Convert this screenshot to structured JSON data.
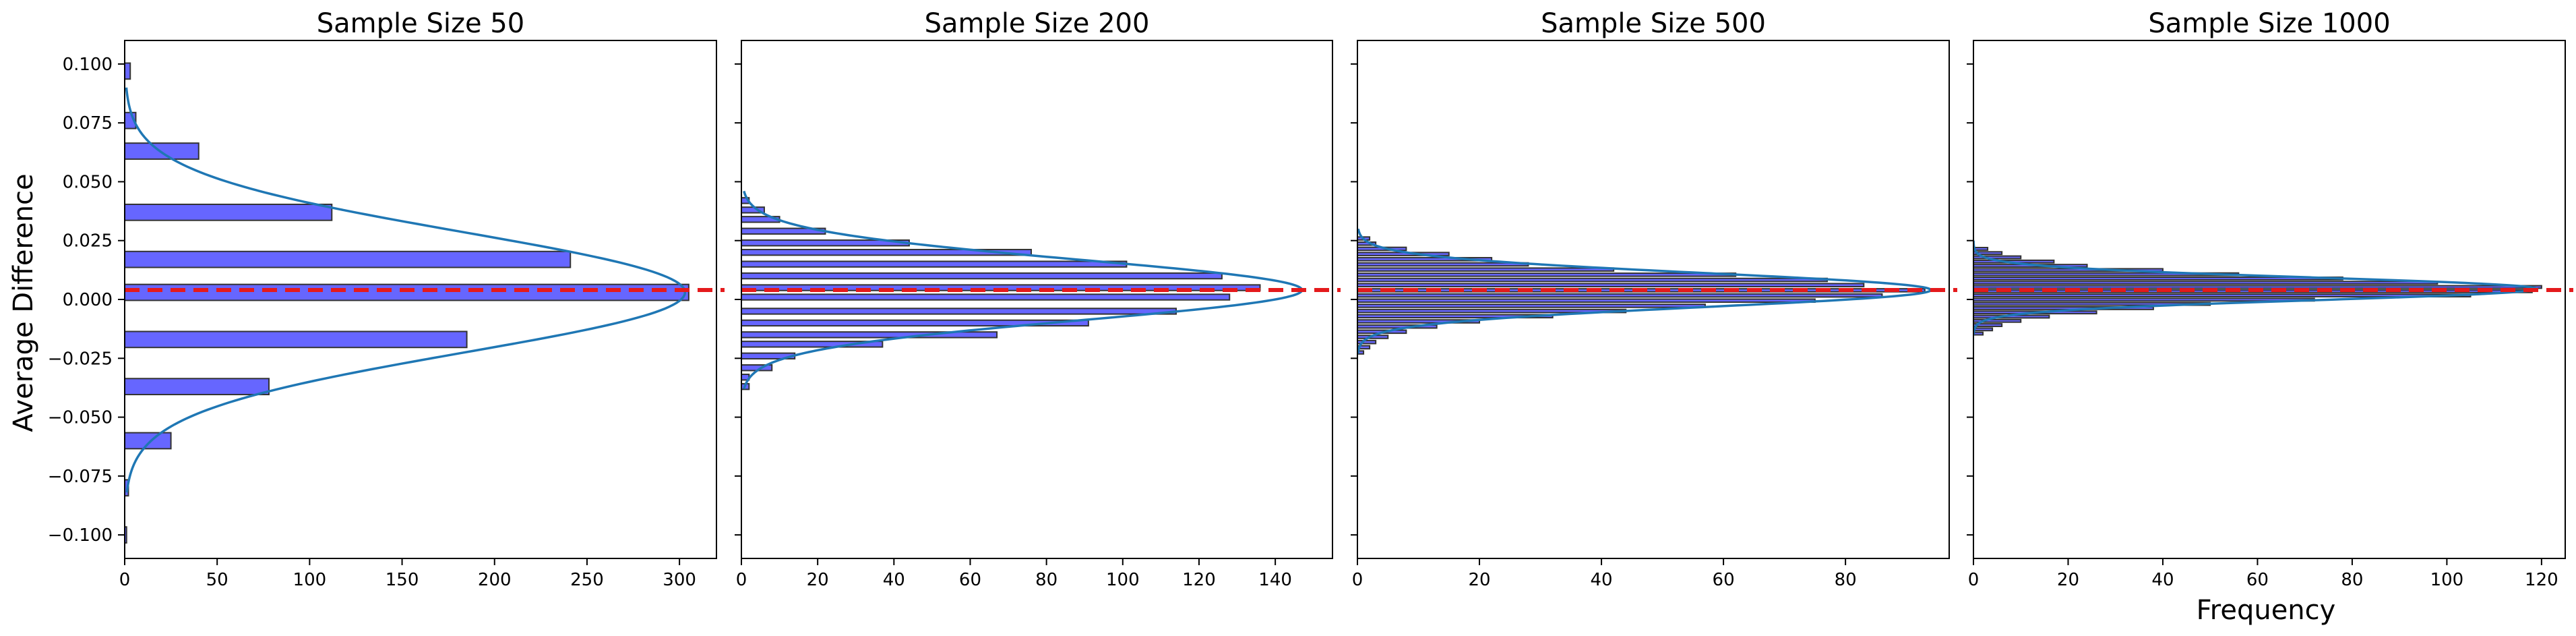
{
  "colors": {
    "bar_fill": "#6666ff",
    "bar_edge": "#333333",
    "kde": "#1f77b4",
    "reference_line": "#e41a1c"
  },
  "shared": {
    "ylabel": "Average Difference",
    "xlabel": "Frequency"
  },
  "chart_data": [
    {
      "type": "bar",
      "orientation": "horizontal",
      "title": "Sample Size 50",
      "ylabel": "Average Difference",
      "xlabel": "",
      "ylim": [
        -0.11,
        0.11
      ],
      "xlim": [
        0,
        320
      ],
      "xticks": [
        0,
        50,
        100,
        150,
        200,
        250,
        300
      ],
      "yticks": [
        -0.1,
        -0.075,
        -0.05,
        -0.025,
        0.0,
        0.025,
        0.05,
        0.075,
        0.1
      ],
      "ytick_labels": [
        "−0.100",
        "−0.075",
        "−0.050",
        "−0.025",
        "0.000",
        "0.025",
        "0.050",
        "0.075",
        "0.100"
      ],
      "bin_width": 0.0068,
      "bins": [
        {
          "y": -0.1,
          "count": 1
        },
        {
          "y": -0.08,
          "count": 2
        },
        {
          "y": -0.06,
          "count": 25
        },
        {
          "y": -0.037,
          "count": 78
        },
        {
          "y": -0.017,
          "count": 185
        },
        {
          "y": 0.003,
          "count": 305
        },
        {
          "y": 0.017,
          "count": 241
        },
        {
          "y": 0.037,
          "count": 112
        },
        {
          "y": 0.063,
          "count": 40
        },
        {
          "y": 0.076,
          "count": 6
        },
        {
          "y": 0.097,
          "count": 3
        }
      ],
      "kde": {
        "mean": 0.003,
        "sd": 0.0255,
        "peak": 303,
        "y_range": [
          -0.082,
          0.09
        ]
      },
      "reference_line": 0.004,
      "grid": false
    },
    {
      "type": "bar",
      "orientation": "horizontal",
      "title": "Sample Size 200",
      "xlabel": "",
      "ylim": [
        -0.11,
        0.11
      ],
      "xlim": [
        0,
        155
      ],
      "xticks": [
        0,
        20,
        40,
        60,
        80,
        100,
        120,
        140
      ],
      "bin_width": 0.0024,
      "bins": [
        {
          "y": -0.037,
          "count": 2
        },
        {
          "y": -0.033,
          "count": 2
        },
        {
          "y": -0.029,
          "count": 8
        },
        {
          "y": -0.024,
          "count": 14
        },
        {
          "y": -0.019,
          "count": 37
        },
        {
          "y": -0.015,
          "count": 67
        },
        {
          "y": -0.01,
          "count": 91
        },
        {
          "y": -0.005,
          "count": 114
        },
        {
          "y": 0.001,
          "count": 128
        },
        {
          "y": 0.005,
          "count": 136
        },
        {
          "y": 0.01,
          "count": 126
        },
        {
          "y": 0.015,
          "count": 101
        },
        {
          "y": 0.02,
          "count": 76
        },
        {
          "y": 0.024,
          "count": 44
        },
        {
          "y": 0.029,
          "count": 22
        },
        {
          "y": 0.034,
          "count": 10
        },
        {
          "y": 0.038,
          "count": 6
        },
        {
          "y": 0.042,
          "count": 2
        }
      ],
      "kde": {
        "mean": 0.004,
        "sd": 0.0128,
        "peak": 147,
        "y_range": [
          -0.038,
          0.046
        ]
      },
      "reference_line": 0.004,
      "grid": false
    },
    {
      "type": "bar",
      "orientation": "horizontal",
      "title": "Sample Size 500",
      "xlabel": "",
      "ylim": [
        -0.11,
        0.11
      ],
      "xlim": [
        0,
        97
      ],
      "xticks": [
        0,
        20,
        40,
        60,
        80
      ],
      "bin_width": 0.0013,
      "bins": [
        {
          "y": -0.0225,
          "count": 1
        },
        {
          "y": -0.0203,
          "count": 2
        },
        {
          "y": -0.0181,
          "count": 3
        },
        {
          "y": -0.0159,
          "count": 5
        },
        {
          "y": -0.0137,
          "count": 8
        },
        {
          "y": -0.0115,
          "count": 13
        },
        {
          "y": -0.0093,
          "count": 20
        },
        {
          "y": -0.0071,
          "count": 32
        },
        {
          "y": -0.0049,
          "count": 44
        },
        {
          "y": -0.0027,
          "count": 57
        },
        {
          "y": -0.0005,
          "count": 75
        },
        {
          "y": 0.0017,
          "count": 86
        },
        {
          "y": 0.0039,
          "count": 93
        },
        {
          "y": 0.0061,
          "count": 83
        },
        {
          "y": 0.0083,
          "count": 77
        },
        {
          "y": 0.0105,
          "count": 62
        },
        {
          "y": 0.0127,
          "count": 42
        },
        {
          "y": 0.0149,
          "count": 28
        },
        {
          "y": 0.0171,
          "count": 22
        },
        {
          "y": 0.0193,
          "count": 15
        },
        {
          "y": 0.0215,
          "count": 8
        },
        {
          "y": 0.0237,
          "count": 3
        },
        {
          "y": 0.0259,
          "count": 2
        }
      ],
      "kde": {
        "mean": 0.004,
        "sd": 0.0072,
        "peak": 94,
        "y_range": [
          -0.023,
          0.03
        ]
      },
      "reference_line": 0.004,
      "grid": false
    },
    {
      "type": "bar",
      "orientation": "horizontal",
      "title": "Sample Size 1000",
      "xlabel": "Frequency",
      "ylim": [
        -0.11,
        0.11
      ],
      "xlim": [
        0,
        125
      ],
      "xticks": [
        0,
        20,
        40,
        60,
        80,
        100,
        120
      ],
      "bin_width": 0.0011,
      "bins": [
        {
          "y": -0.0145,
          "count": 2
        },
        {
          "y": -0.0127,
          "count": 4
        },
        {
          "y": -0.0109,
          "count": 6
        },
        {
          "y": -0.0091,
          "count": 10
        },
        {
          "y": -0.0073,
          "count": 16
        },
        {
          "y": -0.0055,
          "count": 26
        },
        {
          "y": -0.0037,
          "count": 38
        },
        {
          "y": -0.0019,
          "count": 50
        },
        {
          "y": -0.0001,
          "count": 72
        },
        {
          "y": 0.0017,
          "count": 105
        },
        {
          "y": 0.0035,
          "count": 118
        },
        {
          "y": 0.0053,
          "count": 120
        },
        {
          "y": 0.0071,
          "count": 98
        },
        {
          "y": 0.0089,
          "count": 78
        },
        {
          "y": 0.0107,
          "count": 56
        },
        {
          "y": 0.0125,
          "count": 40
        },
        {
          "y": 0.0143,
          "count": 24
        },
        {
          "y": 0.0161,
          "count": 17
        },
        {
          "y": 0.0179,
          "count": 10
        },
        {
          "y": 0.0197,
          "count": 6
        },
        {
          "y": 0.0215,
          "count": 3
        }
      ],
      "kde": {
        "mean": 0.0045,
        "sd": 0.0048,
        "peak": 119,
        "y_range": [
          -0.015,
          0.025
        ]
      },
      "reference_line": 0.004,
      "grid": false
    }
  ]
}
